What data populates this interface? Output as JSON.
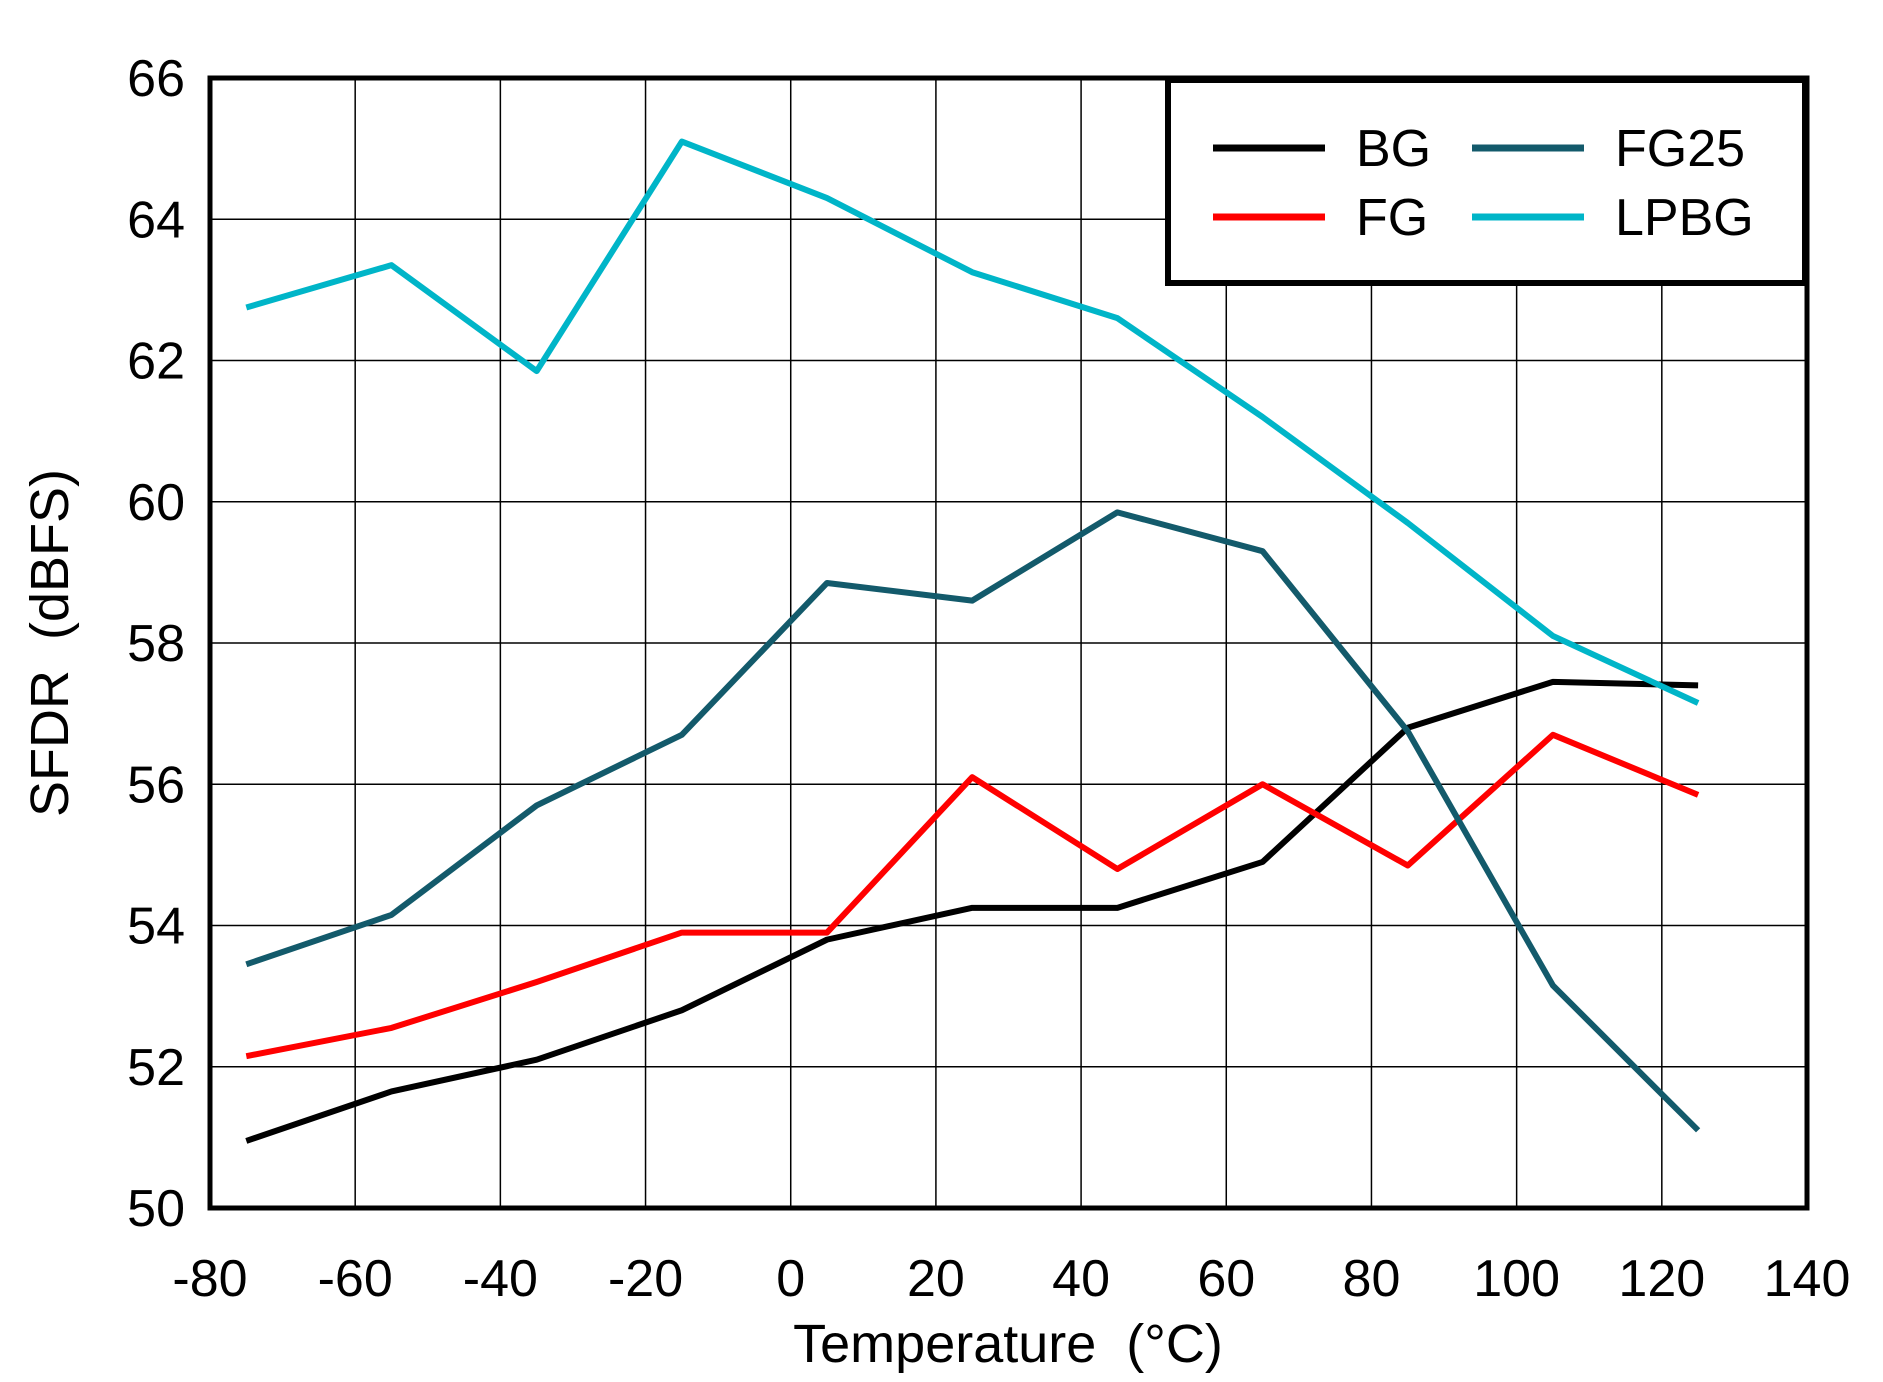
{
  "chart_data": {
    "type": "line",
    "title": "",
    "xlabel": "Temperature  (°C)",
    "xlabel_main": "Temperature  (",
    "xlabel_sup": "o",
    "xlabel_end": "C)",
    "ylabel": "SFDR  (dBFS)",
    "xlim": [
      -80,
      140
    ],
    "ylim": [
      50,
      66
    ],
    "xticks": [
      -80,
      -60,
      -40,
      -20,
      0,
      20,
      40,
      60,
      80,
      100,
      120,
      140
    ],
    "yticks": [
      50,
      52,
      54,
      56,
      58,
      60,
      62,
      64,
      66
    ],
    "grid": true,
    "legend_position": "top-right",
    "x": [
      -75,
      -55,
      -35,
      -15,
      5,
      25,
      45,
      65,
      85,
      105,
      125
    ],
    "series": [
      {
        "name": "BG",
        "color": "#000000",
        "values": [
          50.95,
          51.65,
          52.1,
          52.8,
          53.8,
          54.25,
          54.25,
          54.9,
          56.8,
          57.45,
          57.4
        ]
      },
      {
        "name": "FG",
        "color": "#ff0000",
        "values": [
          52.15,
          52.55,
          53.2,
          53.9,
          53.9,
          56.1,
          54.8,
          56.0,
          54.85,
          56.7,
          55.85
        ]
      },
      {
        "name": "FG25",
        "color": "#135a6b",
        "values": [
          53.45,
          54.15,
          55.7,
          56.7,
          58.85,
          58.6,
          59.85,
          59.3,
          56.75,
          53.15,
          51.1
        ]
      },
      {
        "name": "LPBG",
        "color": "#00b5c8",
        "values": [
          62.75,
          63.35,
          61.85,
          65.1,
          64.3,
          63.25,
          62.6,
          61.2,
          59.7,
          58.1,
          57.15
        ]
      }
    ]
  }
}
